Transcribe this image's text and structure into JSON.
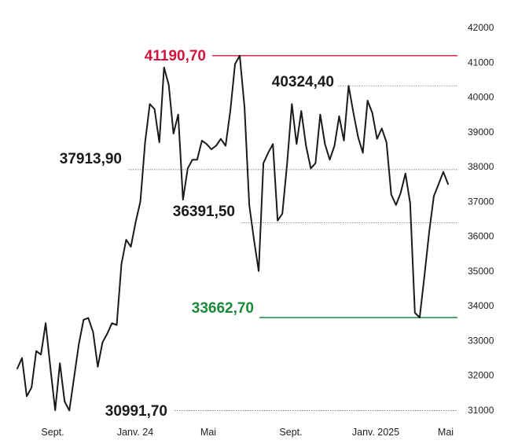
{
  "chart_data": {
    "type": "line",
    "x_labels": [
      "Sept.",
      "Janv. 24",
      "Mai",
      "Sept.",
      "Janv. 2025",
      "Mai"
    ],
    "y_ticks": [
      31000,
      32000,
      33000,
      34000,
      35000,
      36000,
      37000,
      38000,
      39000,
      40000,
      41000,
      42000
    ],
    "ylim": [
      31000,
      42000
    ],
    "colors": {
      "line": "#1a1a1a",
      "high": "#d1143c",
      "low": "#1a8a3a",
      "ref": "#555555"
    },
    "annotations": [
      {
        "label": "41190,70",
        "value": 41190.7,
        "style": "high"
      },
      {
        "label": "40324,40",
        "value": 40324.4,
        "style": "ref"
      },
      {
        "label": "37913,90",
        "value": 37913.9,
        "style": "ref"
      },
      {
        "label": "36391,50",
        "value": 36391.5,
        "style": "ref"
      },
      {
        "label": "33662,70",
        "value": 33662.7,
        "style": "low"
      },
      {
        "label": "30991,70",
        "value": 30991.7,
        "style": "ref"
      }
    ],
    "series": [
      {
        "values": [
          32200,
          32500,
          31400,
          31650,
          32700,
          32600,
          33500,
          32200,
          31000,
          32350,
          31250,
          30992,
          31950,
          32900,
          33600,
          33650,
          33250,
          32250,
          32950,
          33200,
          33500,
          33450,
          35200,
          35900,
          35700,
          36400,
          37000,
          38700,
          39800,
          39650,
          38700,
          40850,
          40350,
          38950,
          39500,
          37050,
          37950,
          38200,
          38200,
          38750,
          38650,
          38500,
          38600,
          38800,
          38600,
          39600,
          40950,
          41190.7,
          39700,
          36900,
          35900,
          35000,
          38100,
          38400,
          38650,
          36450,
          36650,
          38100,
          39800,
          38650,
          39600,
          38600,
          37950,
          38100,
          39500,
          38650,
          38200,
          38600,
          39450,
          38750,
          40324.4,
          39550,
          38850,
          38400,
          39900,
          39550,
          38800,
          39100,
          38700,
          37200,
          36900,
          37250,
          37800,
          36950,
          33800,
          33662.7,
          34850,
          36100,
          37150,
          37500,
          37850,
          37500
        ]
      }
    ]
  }
}
